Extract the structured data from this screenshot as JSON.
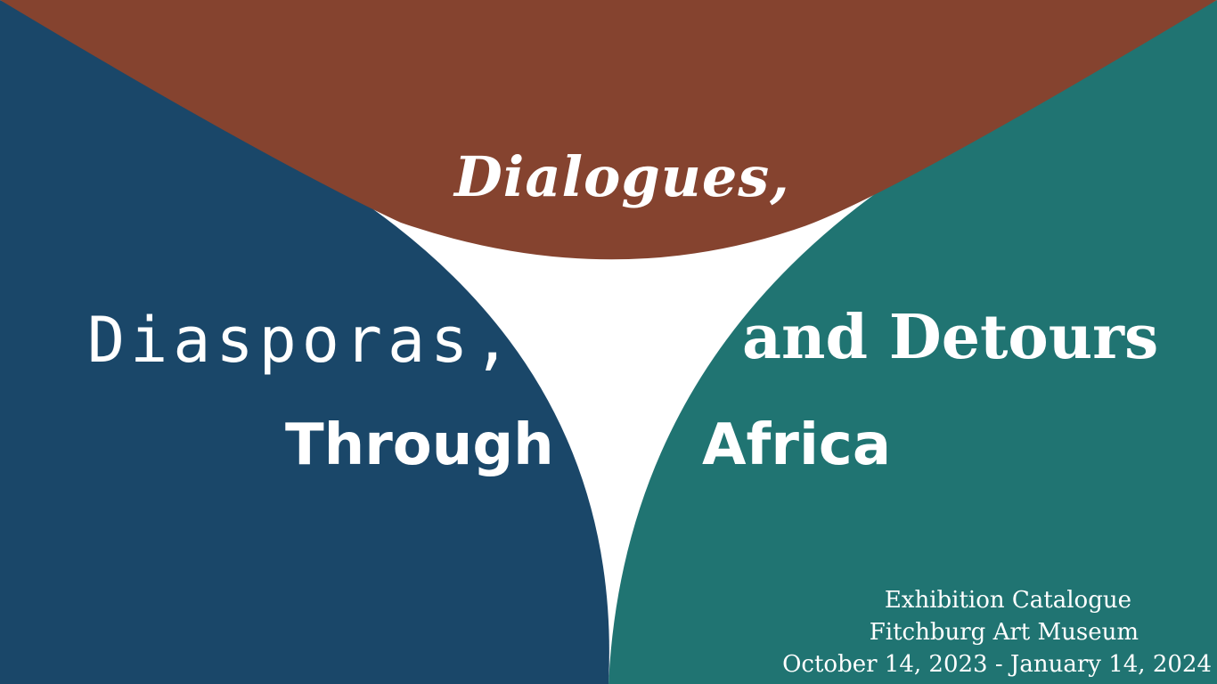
{
  "title": {
    "line1": "Dialogues,",
    "line2_left": "Diasporas,",
    "line2_right": "and Detours",
    "line3_left": "Through",
    "line3_right": "Africa"
  },
  "info": {
    "catalogue": "Exhibition Catalogue",
    "museum": "Fitchburg Art Museum",
    "dates": "October 14, 2023 - January 14, 2024"
  },
  "colors": {
    "brown": "#85432F",
    "navy": "#1A4769",
    "teal": "#207472",
    "background": "#FFFFFF",
    "text": "#FFFFFF"
  }
}
